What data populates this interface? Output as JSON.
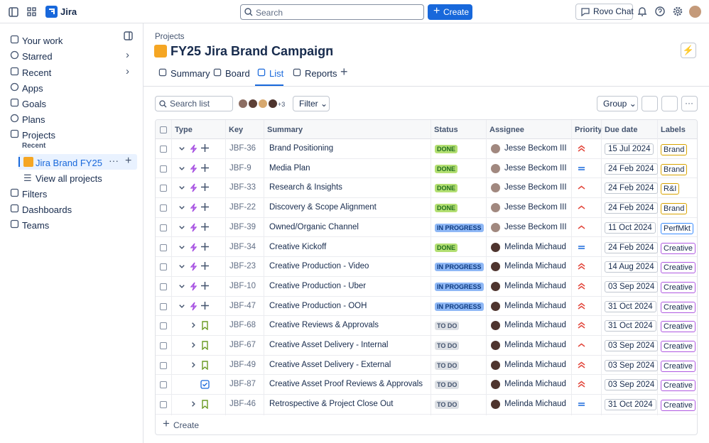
{
  "topbar": {
    "product": "Jira",
    "search": "Search",
    "create": "Create",
    "rovo": "Rovo Chat"
  },
  "sidebar": {
    "items": [
      "Your work",
      "Starred",
      "Recent",
      "Apps",
      "Goals",
      "Plans",
      "Projects"
    ],
    "recent_heading": "Recent",
    "project": "Jira Brand FY25",
    "view_all": "View all projects",
    "bottom_items": [
      "Filters",
      "Dashboards",
      "Teams"
    ]
  },
  "header": {
    "breadcrumb": "Projects",
    "title": "FY25 Jira Brand Campaign",
    "tabs": [
      "Summary",
      "Board",
      "List",
      "Reports"
    ]
  },
  "toolbar": {
    "search": "Search list",
    "more_people": "+3",
    "filter": "Filter",
    "group": "Group"
  },
  "table": {
    "columns": [
      "Type",
      "Key",
      "Summary",
      "Status",
      "Assignee",
      "Priority",
      "Due date",
      "Labels"
    ],
    "rows": [
      [
        "JBF-36",
        "Brand Positioning",
        "DONE",
        "Jesse Beckom III",
        "15 Jul 2024",
        "Brand"
      ],
      [
        "JBF-9",
        "Media Plan",
        "DONE",
        "Jesse Beckom III",
        "24 Feb 2024",
        "Brand"
      ],
      [
        "JBF-33",
        "Research & Insights",
        "DONE",
        "Jesse Beckom III",
        "24 Feb 2024",
        "R&I"
      ],
      [
        "JBF-22",
        "Discovery & Scope Alignment",
        "DONE",
        "Jesse Beckom III",
        "24 Feb 2024",
        "Brand"
      ],
      [
        "JBF-39",
        "Owned/Organic Channel",
        "IN PROGRESS",
        "Jesse Beckom III",
        "11 Oct 2024",
        "PerfMkt"
      ],
      [
        "JBF-34",
        "Creative Kickoff",
        "DONE",
        "Melinda Michaud",
        "24 Feb 2024",
        "Creative"
      ],
      [
        "JBF-23",
        "Creative Production - Video",
        "IN PROGRESS",
        "Melinda Michaud",
        "14 Aug 2024",
        "Creative"
      ],
      [
        "JBF-10",
        "Creative Production - Uber",
        "IN PROGRESS",
        "Melinda Michaud",
        "03 Sep 2024",
        "Creative"
      ],
      [
        "JBF-47",
        "Creative Production - OOH",
        "IN PROGRESS",
        "Melinda Michaud",
        "31 Oct 2024",
        "Creative"
      ],
      [
        "JBF-68",
        "Creative Reviews & Approvals",
        "TO DO",
        "Melinda Michaud",
        "31 Oct 2024",
        "Creative"
      ],
      [
        "JBF-67",
        "Creative Asset Delivery - Internal",
        "TO DO",
        "Melinda Michaud",
        "03 Sep 2024",
        "Creative"
      ],
      [
        "JBF-49",
        "Creative Asset Delivery - External",
        "TO DO",
        "Melinda Michaud",
        "03 Sep 2024",
        "Creative"
      ],
      [
        "JBF-87",
        "Creative Asset Proof Reviews & Approvals",
        "TO DO",
        "Melinda Michaud",
        "03 Sep 2024",
        "Creative"
      ],
      [
        "JBF-46",
        "Retrospective & Project Close Out",
        "TO DO",
        "Melinda Michaud",
        "31 Oct 2024",
        "Creative"
      ]
    ],
    "create": "Create"
  }
}
